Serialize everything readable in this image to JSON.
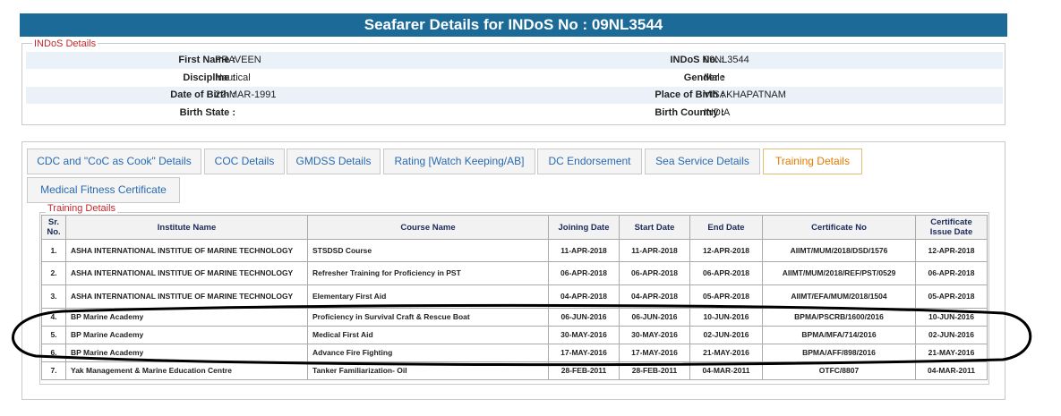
{
  "header": {
    "title": "Seafarer Details for INDoS No : 09NL3544"
  },
  "indos": {
    "legend": "INDoS Details",
    "rows": [
      [
        "First Name :",
        "PRAVEEN",
        "INDoS No. :",
        "09NL3544"
      ],
      [
        "Discipline :",
        "Nautical",
        "Gender :",
        "Male"
      ],
      [
        "Date of Birth :",
        "22-MAR-1991",
        "Place of Birth :",
        "VISAKHAPATNAM"
      ],
      [
        "Birth State :",
        "-",
        "Birth Country :",
        "INDIA"
      ]
    ]
  },
  "tabs": [
    "CDC and \"CoC as Cook\" Details",
    "COC Details",
    "GMDSS Details",
    "Rating [Watch Keeping/AB]",
    "DC Endorsement",
    "Sea Service Details",
    "Training Details",
    "Medical Fitness Certificate"
  ],
  "training": {
    "legend": "Training Details",
    "columns": [
      "Sr. No.",
      "Institute Name",
      "Course Name",
      "Joining Date",
      "Start Date",
      "End Date",
      "Certificate No",
      "Certificate Issue Date"
    ],
    "rows": [
      [
        "1.",
        "ASHA INTERNATIONAL INSTITUE OF MARINE TECHNOLOGY",
        "STSDSD Course",
        "11-APR-2018",
        "11-APR-2018",
        "12-APR-2018",
        "AIIMT/MUM/2018/DSD/1576",
        "12-APR-2018"
      ],
      [
        "2.",
        "ASHA INTERNATIONAL INSTITUE OF MARINE TECHNOLOGY",
        "Refresher Training for Proficiency in PST",
        "06-APR-2018",
        "06-APR-2018",
        "06-APR-2018",
        "AIIMT/MUM/2018/REF/PST/0529",
        "06-APR-2018"
      ],
      [
        "3.",
        "ASHA INTERNATIONAL INSTITUE OF MARINE TECHNOLOGY",
        "Elementary First Aid",
        "04-APR-2018",
        "04-APR-2018",
        "05-APR-2018",
        "AIIMT/EFA/MUM/2018/1504",
        "05-APR-2018"
      ],
      [
        "4.",
        "BP Marine Academy",
        "Proficiency in Survival Craft & Rescue Boat",
        "06-JUN-2016",
        "06-JUN-2016",
        "10-JUN-2016",
        "BPMA/PSCRB/1600/2016",
        "10-JUN-2016"
      ],
      [
        "5.",
        "BP Marine Academy",
        "Medical First Aid",
        "30-MAY-2016",
        "30-MAY-2016",
        "02-JUN-2016",
        "BPMA/MFA/714/2016",
        "02-JUN-2016"
      ],
      [
        "6.",
        "BP Marine Academy",
        "Advance Fire Fighting",
        "17-MAY-2016",
        "17-MAY-2016",
        "21-MAY-2016",
        "BPMA/AFF/898/2016",
        "21-MAY-2016"
      ],
      [
        "7.",
        "Yak Management & Marine Education Centre",
        "Tanker Familiarization- Oil",
        "28-FEB-2011",
        "28-FEB-2011",
        "04-MAR-2011",
        "OTFC/8807",
        "04-MAR-2011"
      ]
    ]
  }
}
